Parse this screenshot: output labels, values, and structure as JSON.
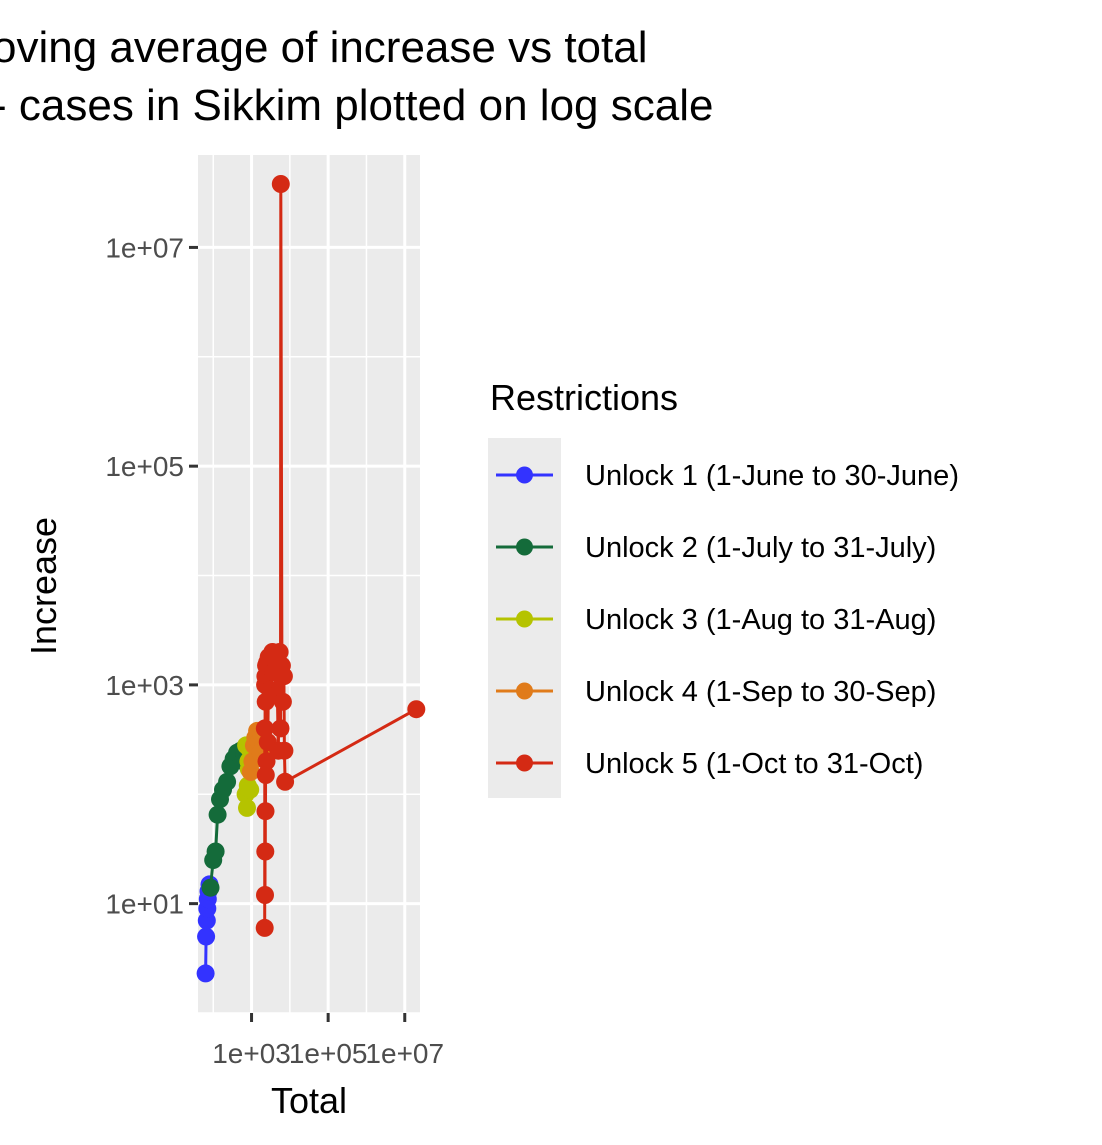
{
  "chart_data": {
    "type": "line",
    "title_lines": [
      "oving average of increase vs total",
      "- cases in Sikkim plotted on log scale"
    ],
    "xlabel": "Total",
    "ylabel": "Increase",
    "x_scale": "log10",
    "y_scale": "log10",
    "xlim": [
      40,
      25000000
    ],
    "ylim": [
      1,
      70000000
    ],
    "x_ticks": [
      1000,
      100000,
      10000000
    ],
    "x_tick_labels": [
      "1e+03",
      "1e+05",
      "1e+07"
    ],
    "y_ticks": [
      10,
      1000,
      100000,
      10000000
    ],
    "y_tick_labels": [
      "1e+01",
      "1e+03",
      "1e+05",
      "1e+07"
    ],
    "grid": true,
    "legend": {
      "title": "Restrictions",
      "position": "right"
    },
    "series": [
      {
        "name": "Unlock 1 (1-June to 30-June)",
        "color": "#3333ff",
        "points": [
          [
            63,
            2.3
          ],
          [
            65,
            5
          ],
          [
            68,
            7
          ],
          [
            70,
            9
          ],
          [
            72,
            11
          ],
          [
            75,
            13
          ],
          [
            80,
            15
          ]
        ]
      },
      {
        "name": "Unlock 2 (1-July to 31-July)",
        "color": "#146b3a",
        "points": [
          [
            85,
            14
          ],
          [
            100,
            25
          ],
          [
            115,
            30
          ],
          [
            130,
            65
          ],
          [
            150,
            90
          ],
          [
            180,
            110
          ],
          [
            230,
            130
          ],
          [
            280,
            180
          ],
          [
            340,
            210
          ],
          [
            420,
            240
          ],
          [
            520,
            250
          ],
          [
            600,
            200
          ],
          [
            650,
            230
          ]
        ]
      },
      {
        "name": "Unlock 3 (1-Aug to 31-Aug)",
        "color": "#b5c300",
        "points": [
          [
            700,
            100
          ],
          [
            720,
            280
          ],
          [
            760,
            75
          ],
          [
            800,
            120
          ],
          [
            830,
            200
          ],
          [
            850,
            170
          ],
          [
            880,
            260
          ],
          [
            920,
            110
          ]
        ]
      },
      {
        "name": "Unlock 4 (1-Sep to 30-Sep)",
        "color": "#e07b1a",
        "points": [
          [
            950,
            160
          ],
          [
            1050,
            200
          ],
          [
            1150,
            280
          ],
          [
            1250,
            330
          ],
          [
            1400,
            380
          ],
          [
            1550,
            300
          ],
          [
            1700,
            240
          ],
          [
            1850,
            350
          ],
          [
            2000,
            300
          ],
          [
            2100,
            280
          ]
        ]
      },
      {
        "name": "Unlock 5 (1-Oct to 31-Oct)",
        "color": "#d42a14",
        "points": [
          [
            2200,
            6
          ],
          [
            2220,
            400
          ],
          [
            2240,
            12
          ],
          [
            2260,
            1000
          ],
          [
            2280,
            30
          ],
          [
            2300,
            1200
          ],
          [
            2320,
            70
          ],
          [
            2340,
            700
          ],
          [
            2360,
            150
          ],
          [
            2400,
            1500
          ],
          [
            2450,
            200
          ],
          [
            2550,
            1600
          ],
          [
            2650,
            300
          ],
          [
            2800,
            1800
          ],
          [
            3000,
            900
          ],
          [
            3200,
            1600
          ],
          [
            3500,
            2000
          ],
          [
            3700,
            1300
          ],
          [
            4000,
            1700
          ],
          [
            4300,
            800
          ],
          [
            4600,
            1500
          ],
          [
            5000,
            250
          ],
          [
            5400,
            2000
          ],
          [
            5700,
            400
          ],
          [
            5800,
            38000000
          ],
          [
            6200,
            1500
          ],
          [
            6600,
            700
          ],
          [
            7000,
            1200
          ],
          [
            7200,
            250
          ],
          [
            7500,
            130
          ],
          [
            20000000,
            600
          ]
        ]
      }
    ]
  }
}
